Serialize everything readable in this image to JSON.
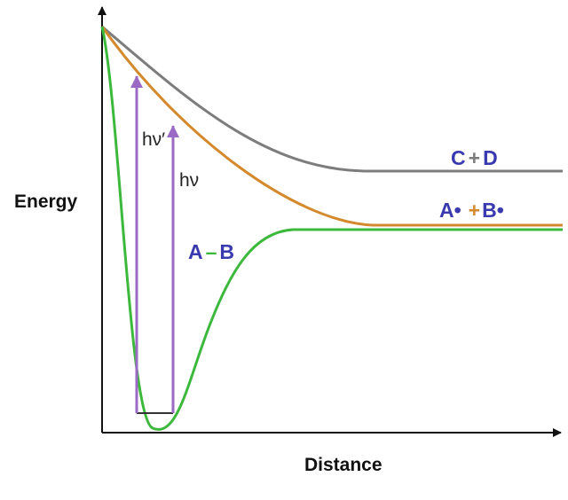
{
  "axes": {
    "y_label": "Energy",
    "x_label": "Distance"
  },
  "photons": {
    "high": "hν′",
    "low": "hν"
  },
  "curves": {
    "bound": {
      "label_left": "A",
      "label_op": "–",
      "label_right": "B",
      "color": "#3cb93c"
    },
    "radical": {
      "label_left": "A•",
      "label_op": "+",
      "label_right": "B•",
      "color": "#d4892c"
    },
    "products": {
      "label_left": "C",
      "label_op": "+",
      "label_right": "D",
      "color": "#7d7d7d"
    }
  },
  "colors": {
    "species_text": "#3a3ab0",
    "arrow": "#9b6ac4",
    "axis": "#111111",
    "level": "#333333"
  }
}
